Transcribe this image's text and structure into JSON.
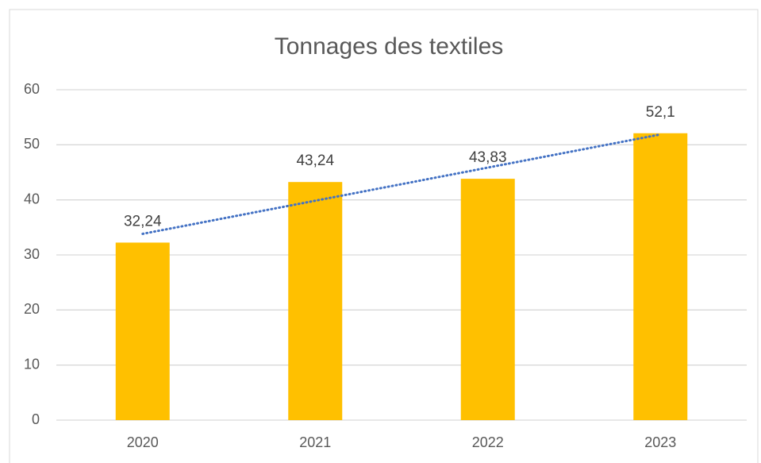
{
  "chart_data": {
    "type": "bar",
    "title": "Tonnages des textiles",
    "categories": [
      "2020",
      "2021",
      "2022",
      "2023"
    ],
    "values": [
      32.24,
      43.24,
      43.83,
      52.1
    ],
    "value_labels": [
      "32,24",
      "43,24",
      "43,83",
      "52,1"
    ],
    "color": "#ffc000",
    "ylim": [
      0,
      60
    ],
    "yticks": [
      0,
      10,
      20,
      30,
      40,
      50,
      60
    ],
    "grid": true,
    "trendline": {
      "type": "linear",
      "color": "#4472c4",
      "style": "dotted"
    }
  }
}
